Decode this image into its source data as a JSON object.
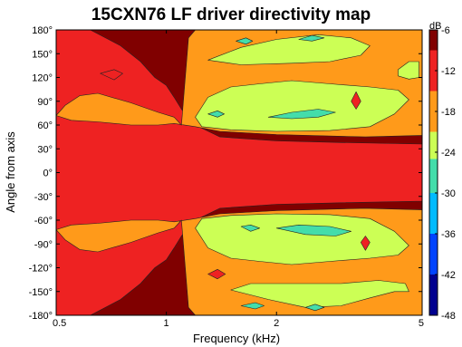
{
  "chart_data": {
    "type": "heatmap",
    "title": "15CXN76 LF driver directivity map",
    "xlabel": "Frequency (kHz)",
    "ylabel": "Angle from axis",
    "x_scale": "log",
    "xlim": [
      0.5,
      5
    ],
    "ylim": [
      -180,
      180
    ],
    "x_ticks": [
      {
        "value": 0.5,
        "label": "0.5"
      },
      {
        "value": 1,
        "label": "1"
      },
      {
        "value": 2,
        "label": "2"
      },
      {
        "value": 5,
        "label": "5"
      }
    ],
    "y_ticks": [
      {
        "value": 180,
        "label": "180°"
      },
      {
        "value": 150,
        "label": "150°"
      },
      {
        "value": 120,
        "label": "120°"
      },
      {
        "value": 90,
        "label": "90°"
      },
      {
        "value": 60,
        "label": "60°"
      },
      {
        "value": 30,
        "label": "30°"
      },
      {
        "value": 0,
        "label": "0°"
      },
      {
        "value": -30,
        "label": "-30°"
      },
      {
        "value": -60,
        "label": "-60°"
      },
      {
        "value": -90,
        "label": "-90°"
      },
      {
        "value": -120,
        "label": "-120°"
      },
      {
        "value": -150,
        "label": "-150°"
      },
      {
        "value": -180,
        "label": "-180°"
      }
    ],
    "colorbar": {
      "unit": "dB",
      "range": [
        -48,
        -6
      ],
      "ticks": [
        {
          "value": -6,
          "label": "-6"
        },
        {
          "value": -12,
          "label": "-12"
        },
        {
          "value": -18,
          "label": "-18"
        },
        {
          "value": -24,
          "label": "-24"
        },
        {
          "value": -30,
          "label": "-30"
        },
        {
          "value": -36,
          "label": "-36"
        },
        {
          "value": -42,
          "label": "-42"
        },
        {
          "value": -48,
          "label": "-48"
        }
      ],
      "levels": [
        {
          "from": -6,
          "to": -9,
          "color": "#800000"
        },
        {
          "from": -9,
          "to": -15,
          "color": "#ee2222"
        },
        {
          "from": -15,
          "to": -21,
          "color": "#ff9a1a"
        },
        {
          "from": -21,
          "to": -25,
          "color": "#ccff55"
        },
        {
          "from": -25,
          "to": -30,
          "color": "#44ddaa"
        },
        {
          "from": -30,
          "to": -36,
          "color": "#00bbff"
        },
        {
          "from": -36,
          "to": -42,
          "color": "#0044ff"
        },
        {
          "from": -42,
          "to": -48,
          "color": "#00008f"
        }
      ]
    },
    "regions": [
      {
        "level": -12,
        "polygon": [
          [
            0.5,
            0
          ],
          [
            0.5,
            180
          ],
          [
            0.62,
            180
          ],
          [
            0.75,
            160
          ],
          [
            0.85,
            140
          ],
          [
            0.93,
            120
          ],
          [
            1.0,
            110
          ],
          [
            1.05,
            95
          ],
          [
            1.1,
            80
          ],
          [
            1.2,
            60
          ],
          [
            1.4,
            45
          ],
          [
            2,
            40
          ],
          [
            3,
            38
          ],
          [
            5,
            36
          ],
          [
            5,
            -36
          ],
          [
            3,
            -38
          ],
          [
            2,
            -40
          ],
          [
            1.4,
            -45
          ],
          [
            1.2,
            -60
          ],
          [
            1.1,
            -80
          ],
          [
            1.05,
            -95
          ],
          [
            1.0,
            -110
          ],
          [
            0.93,
            -120
          ],
          [
            0.85,
            -140
          ],
          [
            0.75,
            -160
          ],
          [
            0.62,
            -180
          ],
          [
            0.5,
            -180
          ]
        ]
      },
      {
        "level": -18,
        "polygon": [
          [
            0.5,
            72
          ],
          [
            0.53,
            85
          ],
          [
            0.58,
            97
          ],
          [
            0.65,
            100
          ],
          [
            0.8,
            88
          ],
          [
            0.95,
            76
          ],
          [
            1.05,
            70
          ],
          [
            1.1,
            60
          ],
          [
            1.15,
            170
          ],
          [
            1.2,
            180
          ],
          [
            5,
            180
          ],
          [
            5,
            47
          ],
          [
            3.5,
            45
          ],
          [
            2,
            48
          ],
          [
            1.4,
            52
          ],
          [
            1.2,
            58
          ],
          [
            1.05,
            62
          ],
          [
            0.95,
            60
          ],
          [
            0.8,
            60
          ],
          [
            0.65,
            64
          ],
          [
            0.55,
            66
          ]
        ]
      },
      {
        "level": -18,
        "polygon": [
          [
            0.5,
            -72
          ],
          [
            0.53,
            -85
          ],
          [
            0.58,
            -97
          ],
          [
            0.65,
            -100
          ],
          [
            0.8,
            -88
          ],
          [
            0.95,
            -76
          ],
          [
            1.05,
            -70
          ],
          [
            1.1,
            -60
          ],
          [
            1.15,
            -170
          ],
          [
            1.2,
            -180
          ],
          [
            5,
            -180
          ],
          [
            5,
            -47
          ],
          [
            3.5,
            -45
          ],
          [
            2,
            -48
          ],
          [
            1.4,
            -52
          ],
          [
            1.2,
            -58
          ],
          [
            1.05,
            -62
          ],
          [
            0.95,
            -60
          ],
          [
            0.8,
            -60
          ],
          [
            0.65,
            -64
          ],
          [
            0.55,
            -66
          ]
        ]
      },
      {
        "level": -24,
        "polygon": [
          [
            1.2,
            70
          ],
          [
            1.3,
            95
          ],
          [
            1.5,
            108
          ],
          [
            1.8,
            112
          ],
          [
            2.2,
            116
          ],
          [
            2.8,
            112
          ],
          [
            3.6,
            108
          ],
          [
            4.3,
            104
          ],
          [
            4.6,
            92
          ],
          [
            4.2,
            74
          ],
          [
            3.6,
            58
          ],
          [
            2.8,
            53
          ],
          [
            2.0,
            52
          ],
          [
            1.5,
            54
          ],
          [
            1.25,
            58
          ]
        ]
      },
      {
        "level": -24,
        "polygon": [
          [
            1.3,
            142
          ],
          [
            1.6,
            158
          ],
          [
            2.0,
            168
          ],
          [
            2.6,
            174
          ],
          [
            3.2,
            170
          ],
          [
            3.6,
            160
          ],
          [
            3.4,
            148
          ],
          [
            2.8,
            140
          ],
          [
            2.2,
            138
          ],
          [
            1.6,
            136
          ]
        ]
      },
      {
        "level": -24,
        "polygon": [
          [
            4.3,
            130
          ],
          [
            4.6,
            140
          ],
          [
            4.9,
            140
          ],
          [
            4.9,
            120
          ],
          [
            4.6,
            118
          ],
          [
            4.3,
            122
          ]
        ]
      },
      {
        "level": -24,
        "polygon": [
          [
            1.2,
            -70
          ],
          [
            1.3,
            -95
          ],
          [
            1.5,
            -108
          ],
          [
            1.8,
            -112
          ],
          [
            2.2,
            -116
          ],
          [
            2.8,
            -112
          ],
          [
            3.6,
            -108
          ],
          [
            4.3,
            -104
          ],
          [
            4.6,
            -92
          ],
          [
            4.2,
            -74
          ],
          [
            3.6,
            -58
          ],
          [
            2.8,
            -53
          ],
          [
            2.0,
            -52
          ],
          [
            1.5,
            -54
          ],
          [
            1.25,
            -58
          ]
        ]
      },
      {
        "level": -24,
        "polygon": [
          [
            1.5,
            -148
          ],
          [
            1.9,
            -160
          ],
          [
            2.4,
            -170
          ],
          [
            3.0,
            -168
          ],
          [
            3.6,
            -158
          ],
          [
            4.2,
            -150
          ],
          [
            4.6,
            -150
          ],
          [
            4.5,
            -140
          ],
          [
            3.8,
            -136
          ],
          [
            3.0,
            -140
          ],
          [
            2.2,
            -140
          ],
          [
            1.7,
            -140
          ]
        ]
      },
      {
        "level": -30,
        "polygon": [
          [
            1.3,
            74
          ],
          [
            1.38,
            78
          ],
          [
            1.44,
            74
          ],
          [
            1.38,
            70
          ]
        ]
      },
      {
        "level": -30,
        "polygon": [
          [
            1.9,
            70
          ],
          [
            2.2,
            76
          ],
          [
            2.6,
            80
          ],
          [
            2.9,
            76
          ],
          [
            2.6,
            70
          ],
          [
            2.2,
            68
          ]
        ]
      },
      {
        "level": -30,
        "polygon": [
          [
            1.55,
            166
          ],
          [
            1.65,
            170
          ],
          [
            1.72,
            166
          ],
          [
            1.65,
            162
          ]
        ]
      },
      {
        "level": -30,
        "polygon": [
          [
            2.3,
            168
          ],
          [
            2.5,
            173
          ],
          [
            2.7,
            170
          ],
          [
            2.5,
            166
          ]
        ]
      },
      {
        "level": -30,
        "polygon": [
          [
            1.6,
            -68
          ],
          [
            1.7,
            -74
          ],
          [
            1.8,
            -70
          ],
          [
            1.7,
            -66
          ]
        ]
      },
      {
        "level": -30,
        "polygon": [
          [
            2.0,
            -70
          ],
          [
            2.4,
            -78
          ],
          [
            2.9,
            -80
          ],
          [
            3.2,
            -74
          ],
          [
            2.8,
            -68
          ],
          [
            2.3,
            -66
          ]
        ]
      },
      {
        "level": -30,
        "polygon": [
          [
            1.6,
            -168
          ],
          [
            1.75,
            -172
          ],
          [
            1.85,
            -168
          ],
          [
            1.75,
            -164
          ]
        ]
      },
      {
        "level": -30,
        "polygon": [
          [
            2.4,
            -170
          ],
          [
            2.55,
            -174
          ],
          [
            2.7,
            -170
          ],
          [
            2.55,
            -166
          ]
        ]
      },
      {
        "level": -12,
        "polygon": [
          [
            0.66,
            125
          ],
          [
            0.72,
            130
          ],
          [
            0.76,
            125
          ],
          [
            0.72,
            117
          ]
        ]
      },
      {
        "level": -12,
        "polygon": [
          [
            3.2,
            90
          ],
          [
            3.3,
            102
          ],
          [
            3.4,
            90
          ],
          [
            3.3,
            80
          ]
        ]
      },
      {
        "level": -12,
        "polygon": [
          [
            1.3,
            -128
          ],
          [
            1.38,
            -134
          ],
          [
            1.45,
            -128
          ],
          [
            1.38,
            -122
          ]
        ]
      },
      {
        "level": -12,
        "polygon": [
          [
            3.4,
            -88
          ],
          [
            3.5,
            -98
          ],
          [
            3.6,
            -88
          ],
          [
            3.5,
            -80
          ]
        ]
      }
    ]
  }
}
